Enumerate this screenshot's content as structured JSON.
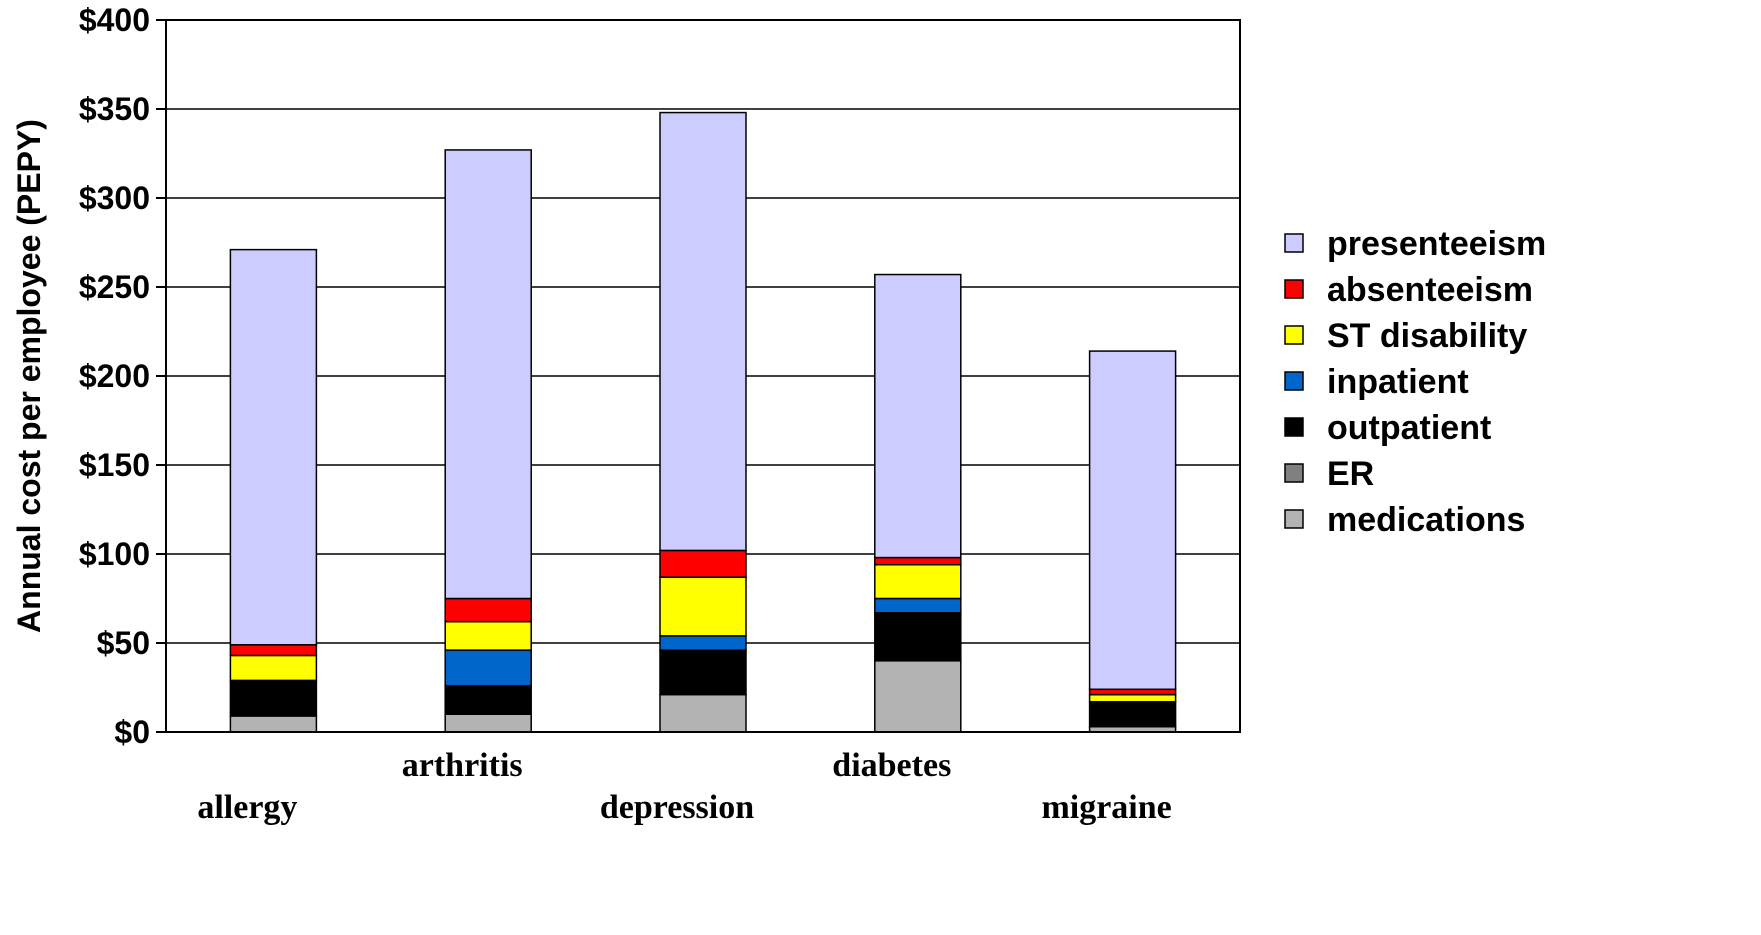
{
  "chart_data": {
    "type": "bar",
    "stacked": true,
    "title": "",
    "xlabel": "",
    "ylabel": "Annual cost per employee (PEPY)",
    "ylim": [
      0,
      400
    ],
    "yticks": [
      0,
      50,
      100,
      150,
      200,
      250,
      300,
      350,
      400
    ],
    "ytick_labels": [
      "$0",
      "$50",
      "$100",
      "$150",
      "$200",
      "$250",
      "$300",
      "$350",
      "$400"
    ],
    "grid": true,
    "legend_position": "right",
    "categories": [
      "allergy",
      "arthritis",
      "depression",
      "diabetes",
      "migraine"
    ],
    "series": [
      {
        "name": "medications",
        "color": "#B3B3B3",
        "values": [
          9,
          10,
          21,
          40,
          3
        ]
      },
      {
        "name": "ER",
        "color": "#808080",
        "values": [
          0,
          0,
          0,
          0,
          0
        ]
      },
      {
        "name": "outpatient",
        "color": "#000000",
        "values": [
          20,
          16,
          25,
          27,
          14
        ]
      },
      {
        "name": "inpatient",
        "color": "#0066CC",
        "values": [
          0,
          20,
          8,
          8,
          0
        ]
      },
      {
        "name": "ST disability",
        "color": "#FFFF00",
        "values": [
          14,
          16,
          33,
          19,
          4
        ]
      },
      {
        "name": "absenteeism",
        "color": "#FF0000",
        "values": [
          6,
          13,
          15,
          4,
          3
        ]
      },
      {
        "name": "presenteeism",
        "color": "#CCCCFF",
        "values": [
          222,
          252,
          246,
          159,
          190
        ]
      }
    ],
    "legend_order": [
      "presenteeism",
      "absenteeism",
      "ST disability",
      "inpatient",
      "outpatient",
      "ER",
      "medications"
    ]
  }
}
